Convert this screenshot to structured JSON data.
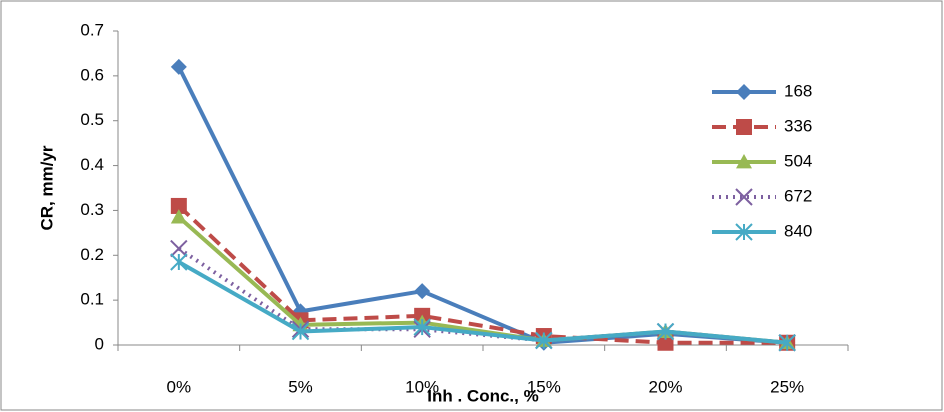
{
  "chart_data": {
    "type": "line",
    "x_label": "Inh . Conc., %",
    "y_label": "CR, mm/yr",
    "categories": [
      "0%",
      "5%",
      "10%",
      "15%",
      "20%",
      "25%"
    ],
    "ylim": [
      0,
      0.7
    ],
    "yticks": [
      0,
      0.1,
      0.2,
      0.3,
      0.4,
      0.5,
      0.6,
      0.7
    ],
    "grid": false,
    "legend": "right",
    "series": [
      {
        "name": "168",
        "color": "#4a7ebb",
        "marker": "diamond",
        "dash": "solid",
        "values": [
          0.62,
          0.075,
          0.12,
          0.005,
          0.025,
          0.005
        ]
      },
      {
        "name": "336",
        "color": "#be4b48",
        "marker": "square",
        "dash": "dashed",
        "values": [
          0.31,
          0.055,
          0.065,
          0.02,
          0.005,
          0.005
        ]
      },
      {
        "name": "504",
        "color": "#98b954",
        "marker": "triangle",
        "dash": "solid",
        "values": [
          0.285,
          0.045,
          0.05,
          0.01,
          0.03,
          0.005
        ]
      },
      {
        "name": "672",
        "color": "#7d60a0",
        "marker": "x",
        "dash": "dotted",
        "values": [
          0.215,
          0.035,
          0.035,
          0.01,
          0.03,
          0.005
        ]
      },
      {
        "name": "840",
        "color": "#46aac5",
        "marker": "star",
        "dash": "solid",
        "values": [
          0.185,
          0.03,
          0.04,
          0.01,
          0.03,
          0.005
        ]
      }
    ]
  }
}
